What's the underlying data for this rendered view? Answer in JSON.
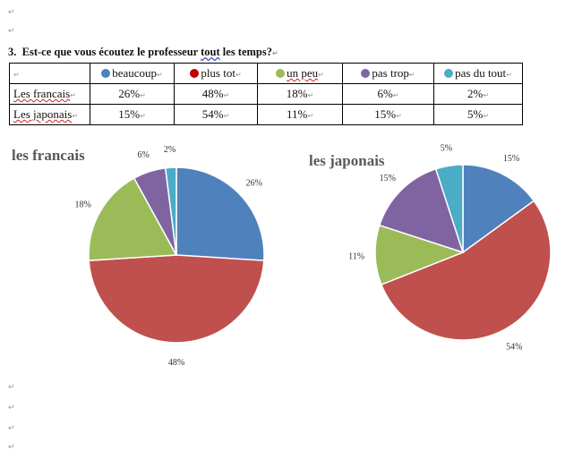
{
  "question": {
    "number": "3.",
    "pre": "Est-ce que vous écoutez le professeur ",
    "underlined": "tout",
    "mid": " les temps?"
  },
  "paragraph_mark": "↵",
  "table": {
    "header": [
      "beaucoup",
      "plus tot",
      "un peu",
      "pas trop",
      "pas du tout"
    ],
    "header_colors": [
      "#4F81BD",
      "#C00000",
      "#9BBB59",
      "#8064A2",
      "#4BACC6"
    ],
    "rows": [
      {
        "label": "Les francais",
        "values": [
          "26%",
          "48%",
          "18%",
          "6%",
          "2%"
        ]
      },
      {
        "label": "Les japonais",
        "values": [
          "15%",
          "54%",
          "11%",
          "15%",
          "5%"
        ]
      }
    ]
  },
  "chart_data": [
    {
      "type": "pie",
      "title": "les francais",
      "categories": [
        "beaucoup",
        "plus tot",
        "un peu",
        "pas trop",
        "pas du tout"
      ],
      "values": [
        26,
        48,
        18,
        6,
        2
      ],
      "labels": [
        "26%",
        "48%",
        "18%",
        "6%",
        "2%"
      ],
      "colors": [
        "#4F81BD",
        "#C0504D",
        "#9BBB59",
        "#8064A2",
        "#4BACC6"
      ]
    },
    {
      "type": "pie",
      "title": "les japonais",
      "categories": [
        "beaucoup",
        "plus tot",
        "un peu",
        "pas trop",
        "pas du tout"
      ],
      "values": [
        15,
        54,
        11,
        15,
        5
      ],
      "labels": [
        "15%",
        "54%",
        "11%",
        "15%",
        "5%"
      ],
      "colors": [
        "#4F81BD",
        "#C0504D",
        "#9BBB59",
        "#8064A2",
        "#4BACC6"
      ]
    }
  ]
}
